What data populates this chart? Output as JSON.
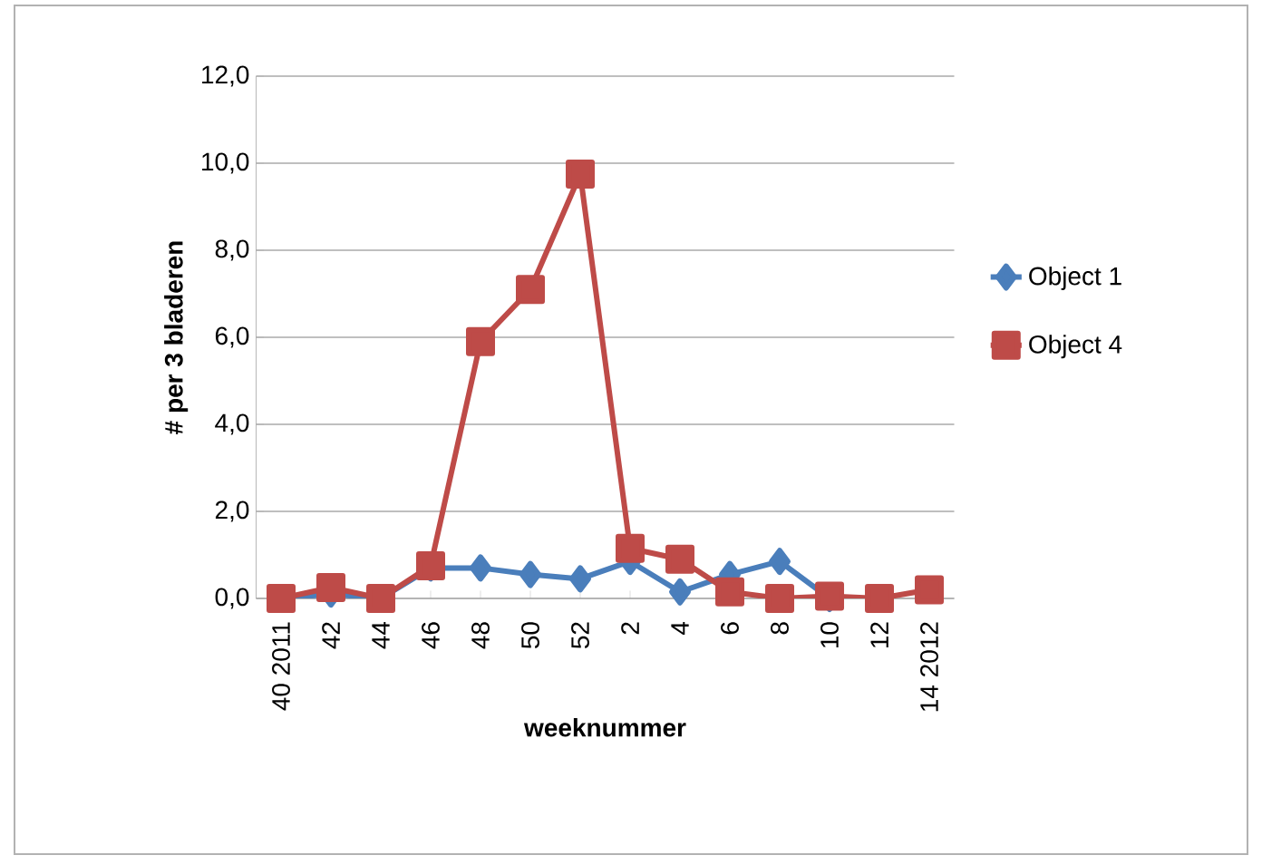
{
  "chart_data": {
    "type": "line",
    "xlabel": "weeknummer",
    "ylabel": "# per 3 bladeren",
    "categories": [
      "40 2011",
      "42",
      "44",
      "46",
      "48",
      "50",
      "52",
      "2",
      "4",
      "6",
      "8",
      "10",
      "12",
      "14 2012"
    ],
    "series": [
      {
        "name": "Object 1",
        "color": "#4a7ebb",
        "marker": "diamond",
        "values": [
          0,
          0.1,
          0,
          0.7,
          0.7,
          0.55,
          0.45,
          0.85,
          0.15,
          0.55,
          0.85,
          0,
          null,
          null
        ]
      },
      {
        "name": "Object 4",
        "color": "#be4b48",
        "marker": "square",
        "values": [
          0,
          0.25,
          0,
          0.75,
          5.9,
          7.1,
          9.75,
          1.15,
          0.9,
          0.15,
          0,
          0.05,
          0,
          0.2
        ]
      }
    ],
    "ylim": [
      0,
      12
    ],
    "yticks": [
      {
        "value": 0,
        "label": "0,0"
      },
      {
        "value": 2,
        "label": "2,0"
      },
      {
        "value": 4,
        "label": "4,0"
      },
      {
        "value": 6,
        "label": "6,0"
      },
      {
        "value": 8,
        "label": "8,0"
      },
      {
        "value": 10,
        "label": "10,0"
      },
      {
        "value": 12,
        "label": "12,0"
      }
    ],
    "grid": "y",
    "legend": "right",
    "line_style": "solid"
  }
}
